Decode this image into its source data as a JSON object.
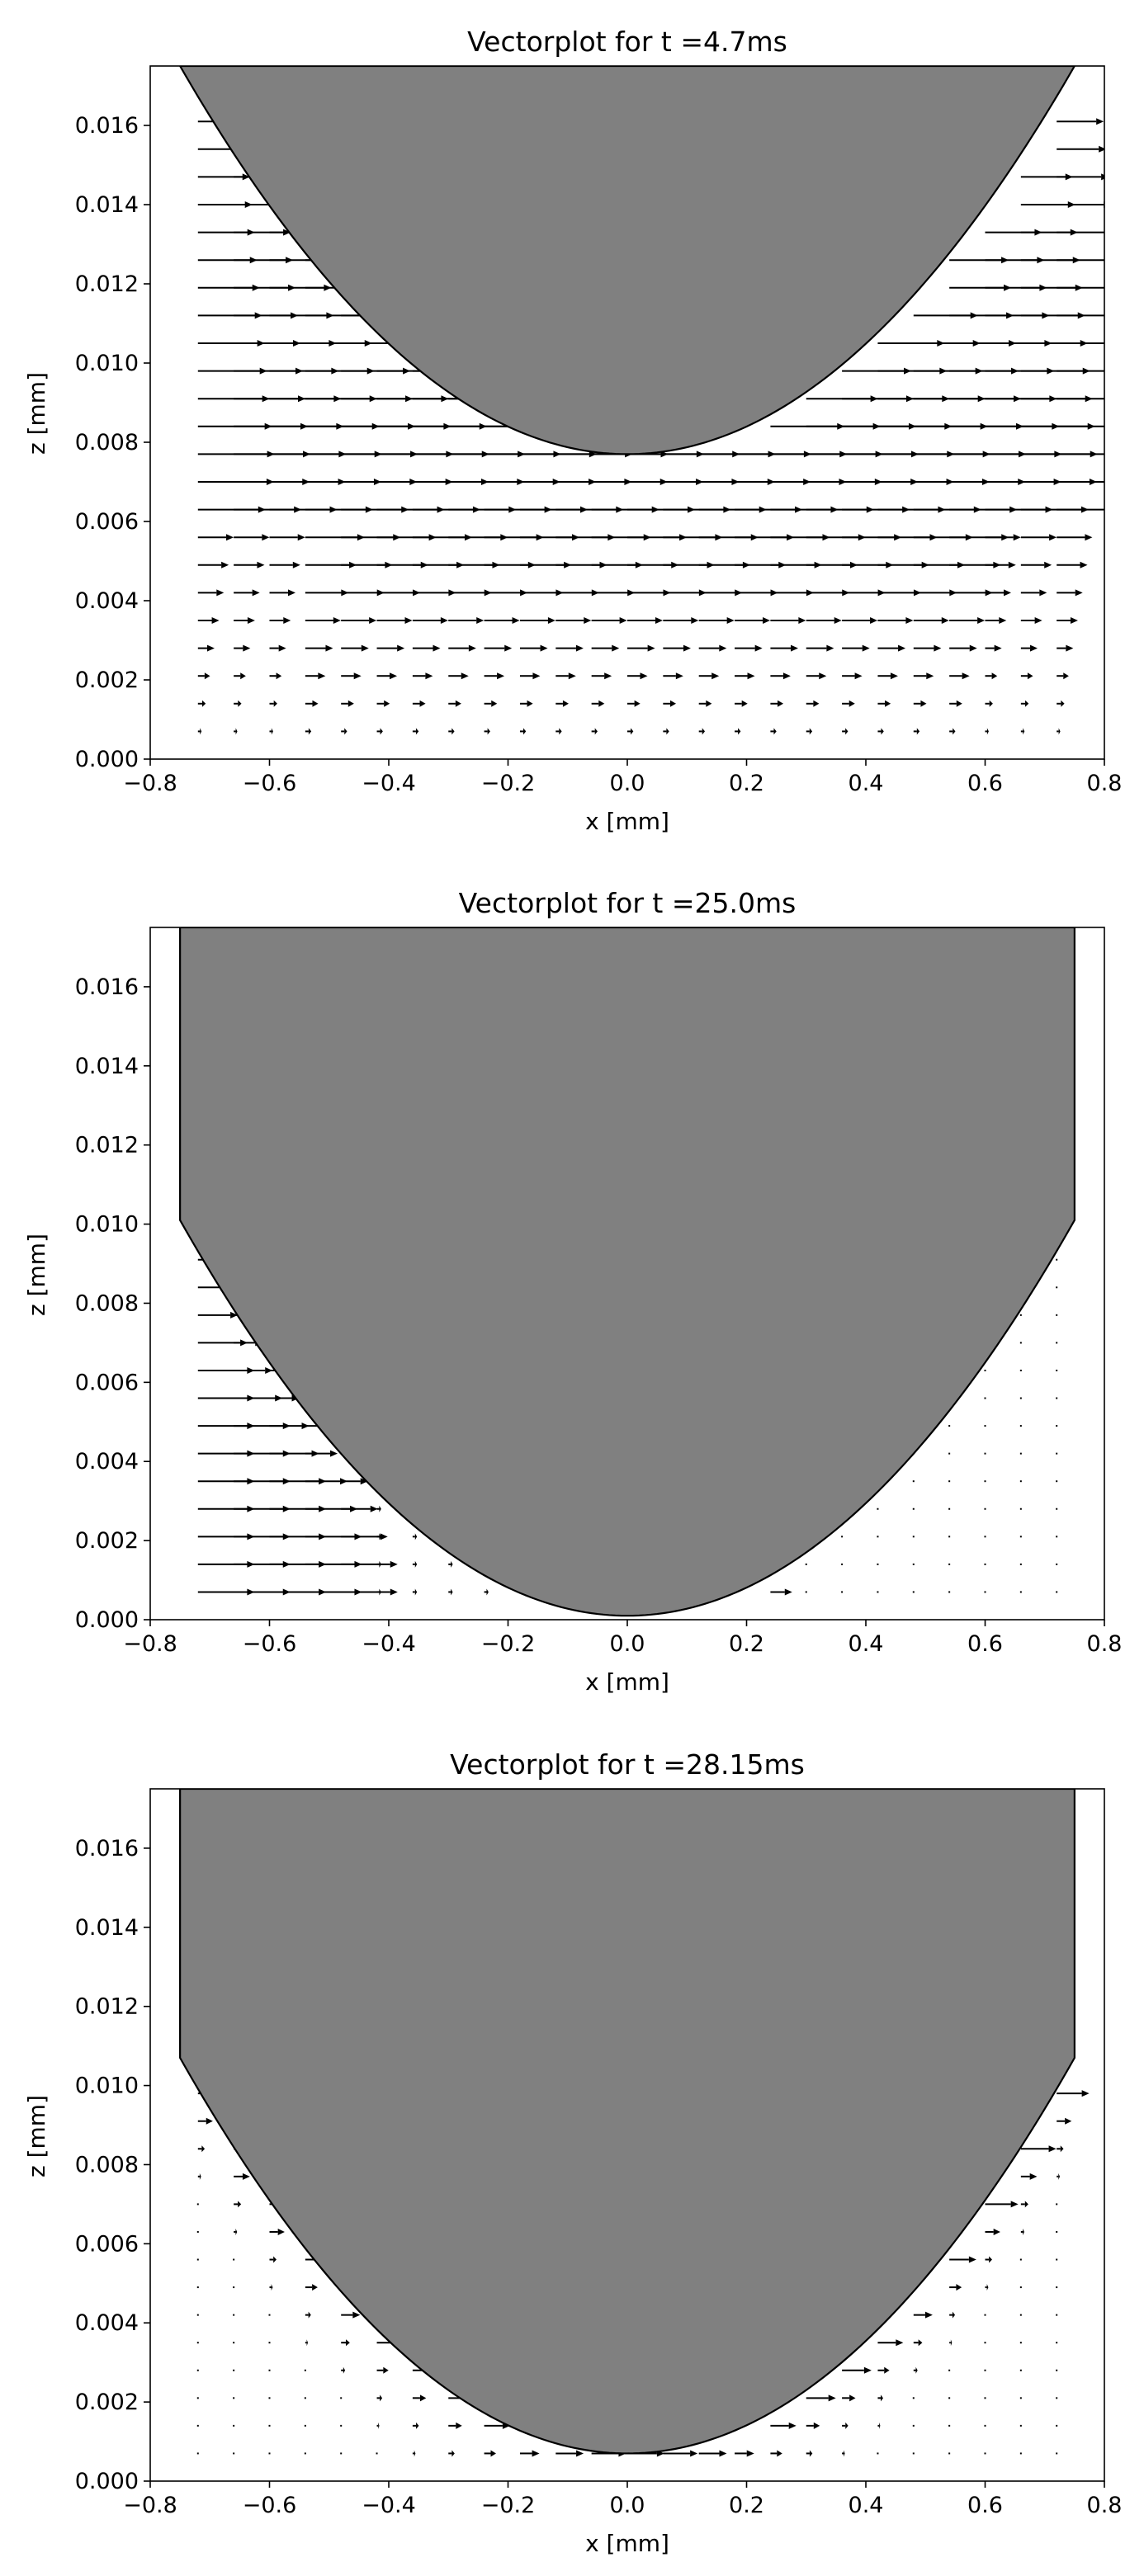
{
  "chart_data": [
    {
      "type": "quiver",
      "title": "Vectorplot for t =4.7ms",
      "xlabel": "x [mm]",
      "ylabel": "z [mm]",
      "xlim": [
        -0.8,
        0.8
      ],
      "ylim": [
        0.0,
        0.0175
      ],
      "xticks": [
        "−0.8",
        "−0.6",
        "−0.4",
        "−0.2",
        "0.0",
        "0.2",
        "0.4",
        "0.6",
        "0.8"
      ],
      "yticks": [
        "0.000",
        "0.002",
        "0.004",
        "0.006",
        "0.008",
        "0.010",
        "0.012",
        "0.014",
        "0.016"
      ],
      "grid": false,
      "colors": {
        "body_fill": "#808080",
        "body_edge": "#000000",
        "arrow": "#000000"
      },
      "body_boundary": {
        "shape": "parabola",
        "vertex_z": 0.0077,
        "z_at_x_0.75": 0.0175,
        "x_extent": [
          -0.75,
          0.75
        ]
      },
      "flow": "uniform +x stream confined below and beside the body; strongest just below the body vertex around z≈0.007, decaying toward z=0"
    },
    {
      "type": "quiver",
      "title": "Vectorplot for t =25.0ms",
      "xlabel": "x [mm]",
      "ylabel": "z [mm]",
      "xlim": [
        -0.8,
        0.8
      ],
      "ylim": [
        0.0,
        0.0175
      ],
      "xticks": [
        "−0.8",
        "−0.6",
        "−0.4",
        "−0.2",
        "0.0",
        "0.2",
        "0.4",
        "0.6",
        "0.8"
      ],
      "yticks": [
        "0.000",
        "0.002",
        "0.004",
        "0.006",
        "0.008",
        "0.010",
        "0.012",
        "0.014",
        "0.016"
      ],
      "grid": false,
      "colors": {
        "body_fill": "#808080",
        "body_edge": "#000000",
        "arrow": "#000000"
      },
      "body_boundary": {
        "shape": "parabola_with_vertical_walls",
        "vertex_z": 0.0001,
        "wall_x": [
          -0.75,
          0.75
        ],
        "wall_bottom_z": 0.0101
      },
      "flow": "+x arrows on the left side of the body (x from -0.75 to -0.45), near-zero vectors on the right side"
    },
    {
      "type": "quiver",
      "title": "Vectorplot for t =28.15ms",
      "xlabel": "x [mm]",
      "ylabel": "z [mm]",
      "xlim": [
        -0.8,
        0.8
      ],
      "ylim": [
        0.0,
        0.0175
      ],
      "xticks": [
        "−0.8",
        "−0.6",
        "−0.4",
        "−0.2",
        "0.0",
        "0.2",
        "0.4",
        "0.6",
        "0.8"
      ],
      "yticks": [
        "0.000",
        "0.002",
        "0.004",
        "0.006",
        "0.008",
        "0.010",
        "0.012",
        "0.014",
        "0.016"
      ],
      "grid": false,
      "colors": {
        "body_fill": "#808080",
        "body_edge": "#000000",
        "arrow": "#000000"
      },
      "body_boundary": {
        "shape": "parabola_with_vertical_walls",
        "vertex_z": 0.0007,
        "wall_x": [
          -0.75,
          0.75
        ],
        "wall_bottom_z": 0.0107
      },
      "flow": "small +x arrows concentrated in a thin layer hugging the body surface on both sides"
    }
  ]
}
